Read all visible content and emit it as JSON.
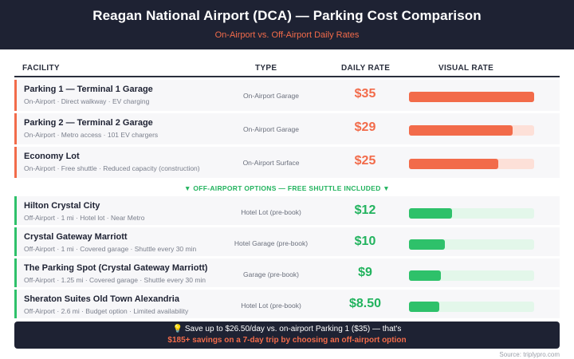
{
  "header": {
    "title": "Reagan National Airport (DCA) — Parking Cost Comparison",
    "subtitle": "On-Airport vs. Off-Airport Daily Rates"
  },
  "columns": {
    "facility": "FACILITY",
    "type": "TYPE",
    "daily_rate": "DAILY RATE",
    "visual_rate": "VISUAL RATE"
  },
  "on_airport": [
    {
      "name": "Parking 1 — Terminal 1 Garage",
      "details": "On-Airport · Direct walkway · EV charging",
      "type": "On-Airport Garage",
      "rate": "$35",
      "rate_value": 35
    },
    {
      "name": "Parking 2 — Terminal 2 Garage",
      "details": "On-Airport · Metro access · 101 EV chargers",
      "type": "On-Airport Garage",
      "rate": "$29",
      "rate_value": 29
    },
    {
      "name": "Economy Lot",
      "details": "On-Airport · Free shuttle · Reduced capacity (construction)",
      "type": "On-Airport Surface",
      "rate": "$25",
      "rate_value": 25
    }
  ],
  "divider": "▼ OFF-AIRPORT OPTIONS — FREE SHUTTLE INCLUDED ▼",
  "off_airport": [
    {
      "name": "Hilton Crystal City",
      "details": "Off-Airport · 1 mi · Hotel lot · Near Metro",
      "type": "Hotel Lot (pre-book)",
      "rate": "$12",
      "rate_value": 12
    },
    {
      "name": "Crystal Gateway Marriott",
      "details": "Off-Airport · 1 mi · Covered garage · Shuttle every 30 min",
      "type": "Hotel Garage (pre-book)",
      "rate": "$10",
      "rate_value": 10
    },
    {
      "name": "The Parking Spot (Crystal Gateway Marriott)",
      "details": "Off-Airport · 1.25 mi · Covered garage · Shuttle every 30 min",
      "type": "Garage (pre-book)",
      "rate": "$9",
      "rate_value": 9
    },
    {
      "name": "Sheraton Suites Old Town Alexandria",
      "details": "Off-Airport · 2.6 mi · Budget option · Limited availability",
      "type": "Hotel Lot (pre-book)",
      "rate": "$8.50",
      "rate_value": 8.5
    }
  ],
  "max_rate": 35,
  "footer": {
    "line1": "💡 Save up to $26.50/day vs. on-airport Parking 1 ($35) — that's",
    "line2": "$185+ savings on a 7-day trip by choosing an off-airport option"
  },
  "source": "Source: triplypro.com",
  "colors": {
    "on_accent": "#f26b4a",
    "off_accent": "#2ec16a",
    "header_bg": "#1e2233"
  }
}
